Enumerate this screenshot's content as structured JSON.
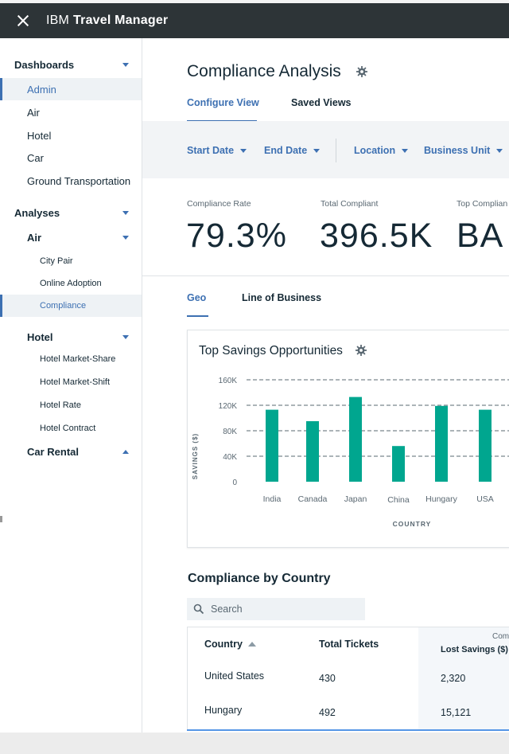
{
  "app": {
    "brand_prefix": "IBM",
    "brand_name": "Travel Manager"
  },
  "sidebar": {
    "items": [
      {
        "label": "Dashboards",
        "type": "head",
        "caret": "down"
      },
      {
        "label": "Admin",
        "type": "item",
        "active": true
      },
      {
        "label": "Air",
        "type": "item"
      },
      {
        "label": "Hotel",
        "type": "item"
      },
      {
        "label": "Car",
        "type": "item"
      },
      {
        "label": "Ground Transportation",
        "type": "item"
      },
      {
        "label": "Analyses",
        "type": "head",
        "caret": "down"
      },
      {
        "label": "Air",
        "type": "subhead",
        "caret": "down"
      },
      {
        "label": "City Pair",
        "type": "sub"
      },
      {
        "label": "Online Adoption",
        "type": "sub"
      },
      {
        "label": "Compliance",
        "type": "sub",
        "active": true
      },
      {
        "label": "Hotel",
        "type": "subhead",
        "caret": "down"
      },
      {
        "label": "Hotel Market-Share",
        "type": "sub"
      },
      {
        "label": "Hotel Market-Shift",
        "type": "sub"
      },
      {
        "label": "Hotel Rate",
        "type": "sub"
      },
      {
        "label": "Hotel Contract",
        "type": "sub"
      },
      {
        "label": "Car Rental",
        "type": "subhead",
        "caret": "up"
      }
    ]
  },
  "main": {
    "title": "Compliance Analysis",
    "tabs": [
      {
        "label": "Configure View",
        "active": true
      },
      {
        "label": "Saved Views"
      }
    ],
    "filters": [
      {
        "label": "Start Date"
      },
      {
        "label": "End Date"
      },
      {
        "label": "Location"
      },
      {
        "label": "Business Unit"
      }
    ],
    "kpis": [
      {
        "label": "Compliance Rate",
        "value": "79.3%"
      },
      {
        "label": "Total Compliant",
        "value": "396.5K"
      },
      {
        "label": "Top Complian",
        "value": "BA"
      }
    ],
    "subtabs": [
      {
        "label": "Geo",
        "active": true
      },
      {
        "label": "Line of Business"
      }
    ],
    "card_title": "Top Savings Opportunities",
    "section_title": "Compliance by Country",
    "search_placeholder": "Search",
    "table": {
      "headers": {
        "country": "Country",
        "total_tickets": "Total Tickets",
        "lost_savings": "Lost Savings ($)",
        "group": "Com"
      },
      "rows": [
        {
          "country": "United States",
          "total_tickets": "430",
          "lost_savings": "2,320"
        },
        {
          "country": "Hungary",
          "total_tickets": "492",
          "lost_savings": "15,121"
        }
      ]
    }
  },
  "colors": {
    "accent": "#3d70b2",
    "bar": "#00a68f",
    "topbar": "#2d3437"
  },
  "chart_data": {
    "type": "bar",
    "categories": [
      "India",
      "Canada",
      "Japan",
      "China",
      "Hungary",
      "USA"
    ],
    "values": [
      113000,
      95000,
      133000,
      56000,
      119000,
      113000
    ],
    "ylabel": "SAVINGS ($)",
    "xlabel": "COUNTRY",
    "ylim": [
      0,
      160000
    ],
    "y_ticks": [
      {
        "v": 0,
        "label": "0"
      },
      {
        "v": 40000,
        "label": "40K"
      },
      {
        "v": 80000,
        "label": "80K"
      },
      {
        "v": 120000,
        "label": "120K"
      },
      {
        "v": 160000,
        "label": "160K"
      }
    ],
    "grid": true
  }
}
